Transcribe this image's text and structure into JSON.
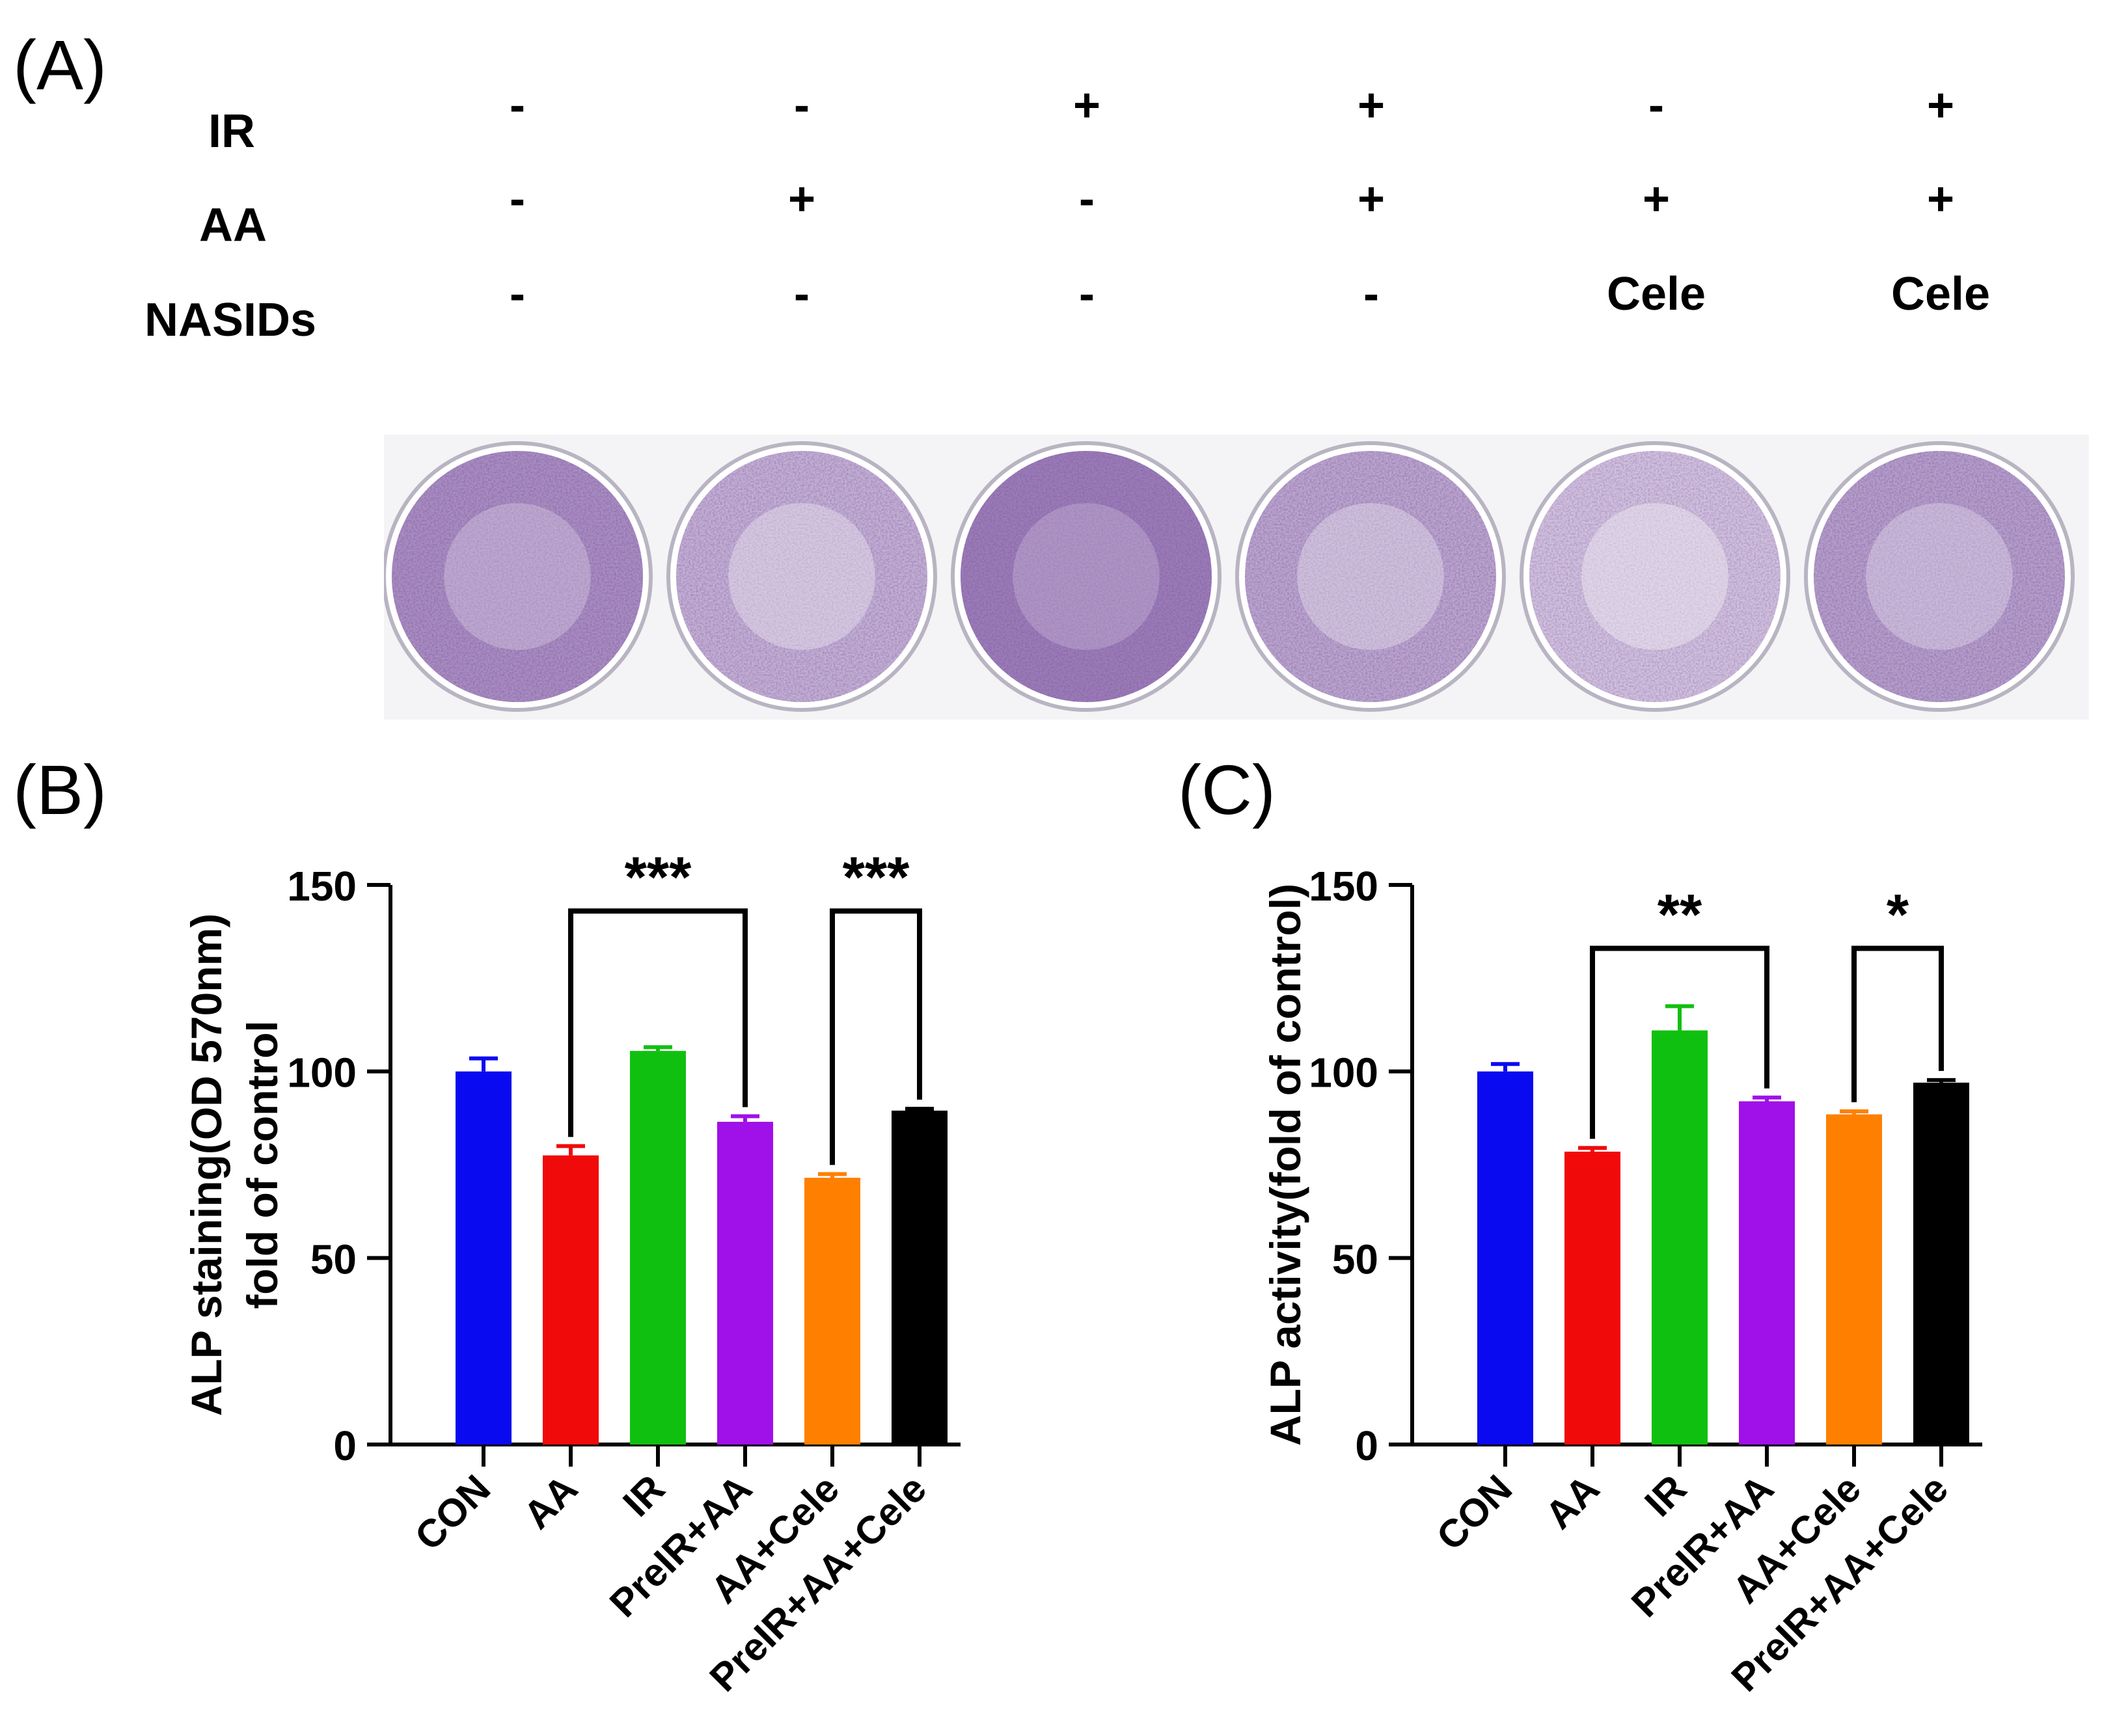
{
  "panels": {
    "a_label": "(A)",
    "b_label": "(B)",
    "c_label": "(C)"
  },
  "treatment_table": {
    "rows": [
      {
        "label": "IR",
        "values": [
          "-",
          "-",
          "+",
          "+",
          "-",
          "+"
        ]
      },
      {
        "label": "AA",
        "values": [
          "-",
          "+",
          "-",
          "+",
          "+",
          "+"
        ]
      },
      {
        "label": "NASIDs",
        "values": [
          "-",
          "-",
          "-",
          "-",
          "Cele",
          "Cele"
        ]
      }
    ]
  },
  "plates": [
    {
      "stain_intensity": 0.78
    },
    {
      "stain_intensity": 0.45
    },
    {
      "stain_intensity": 0.95
    },
    {
      "stain_intensity": 0.55
    },
    {
      "stain_intensity": 0.28
    },
    {
      "stain_intensity": 0.62
    }
  ],
  "colors": {
    "CON": "#0a0af0",
    "AA": "#f00a0a",
    "IR": "#10c010",
    "PreIR+AA": "#a010e8",
    "AA+Cele": "#ff8000",
    "PreIR+AA+Cele": "#000000",
    "stain": "#5a3a8a"
  },
  "chart_data": [
    {
      "type": "bar",
      "categories": [
        "CON",
        "AA",
        "IR",
        "PreIR+AA",
        "AA+Cele",
        "PreIR+AA+Cele"
      ],
      "values": [
        100,
        77.5,
        105.5,
        86.5,
        71.5,
        89.5
      ],
      "errors": [
        3.5,
        2.5,
        1.0,
        1.5,
        1.0,
        0.5
      ],
      "ylabel": [
        "ALP staining(OD 570nm)",
        "fold of control"
      ],
      "ylim": [
        0,
        150
      ],
      "yticks": [
        0,
        50,
        100,
        150
      ],
      "significance": [
        {
          "from": "AA",
          "to": "PreIR+AA",
          "label": "***",
          "level": 143
        },
        {
          "from": "AA+Cele",
          "to": "PreIR+AA+Cele",
          "label": "***",
          "level": 143
        }
      ]
    },
    {
      "type": "bar",
      "categories": [
        "CON",
        "AA",
        "IR",
        "PreIR+AA",
        "AA+Cele",
        "PreIR+AA+Cele"
      ],
      "values": [
        100,
        78.5,
        111,
        92,
        88.5,
        97
      ],
      "errors": [
        2.0,
        1.0,
        6.5,
        1.0,
        0.8,
        0.7
      ],
      "ylabel": [
        "ALP activity(fold of control)"
      ],
      "ylim": [
        0,
        150
      ],
      "yticks": [
        0,
        50,
        100,
        150
      ],
      "significance": [
        {
          "from": "AA",
          "to": "PreIR+AA",
          "label": "**",
          "level": 133
        },
        {
          "from": "AA+Cele",
          "to": "PreIR+AA+Cele",
          "label": "*",
          "level": 133
        }
      ]
    }
  ]
}
